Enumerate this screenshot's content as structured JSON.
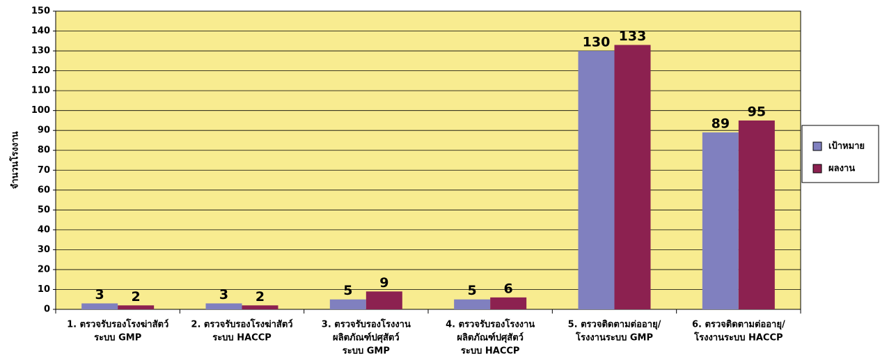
{
  "chart_data": {
    "type": "bar",
    "y_label": "จำนวนโรงงาน",
    "categories": [
      [
        "1. ตรวจรับรองโรงฆ่าสัตว์",
        "ระบบ GMP"
      ],
      [
        "2. ตรวจรับรองโรงฆ่าสัตว์",
        "ระบบ HACCP"
      ],
      [
        "3. ตรวจรับรองโรงงาน",
        "ผลิตภัณฑ์ปศุสัตว์",
        "ระบบ GMP"
      ],
      [
        "4. ตรวจรับรองโรงงาน",
        "ผลิตภัณฑ์ปศุสัตว์",
        "ระบบ HACCP"
      ],
      [
        "5. ตรวจติดตามต่ออายุ/",
        "โรงงานระบบ GMP"
      ],
      [
        "6. ตรวจติดตามต่ออายุ/",
        "โรงงานระบบ HACCP"
      ]
    ],
    "series": [
      {
        "name": "เป้าหมาย",
        "color": "#8080bf",
        "values": [
          3,
          3,
          5,
          5,
          130,
          89
        ]
      },
      {
        "name": "ผลงาน",
        "color": "#8c2150",
        "values": [
          2,
          2,
          9,
          6,
          133,
          95
        ]
      }
    ],
    "ylim": [
      0,
      150
    ],
    "yticks": [
      0,
      10,
      20,
      30,
      40,
      50,
      60,
      70,
      80,
      90,
      100,
      110,
      120,
      130,
      140,
      150
    ],
    "grid": true,
    "legend": "right",
    "plot_background": "#f8ec90"
  }
}
